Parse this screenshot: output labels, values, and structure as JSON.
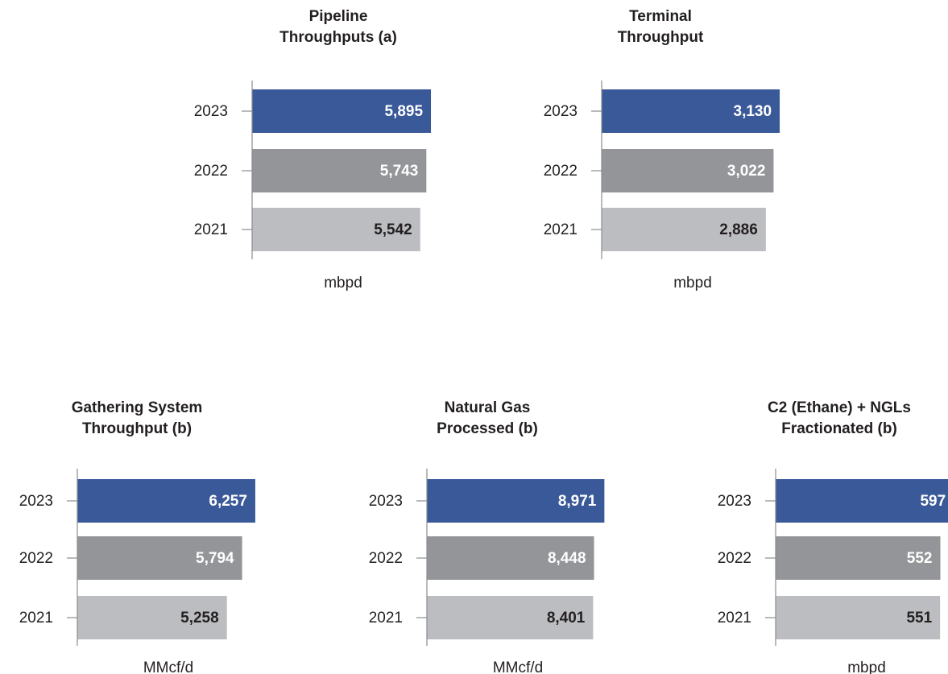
{
  "chart_data": [
    {
      "type": "bar",
      "title": [
        "Pipeline",
        "Throughputs (a)"
      ],
      "categories": [
        "2023",
        "2022",
        "2021"
      ],
      "values": [
        5895,
        5743,
        5542
      ],
      "value_labels": [
        "5,895",
        "5,743",
        "5,542"
      ],
      "colors": [
        "#3a5998",
        "#939598",
        "#bcbdc0"
      ],
      "value_label_colors": [
        "#ffffff",
        "#ffffff",
        "#231f20"
      ],
      "xlim": [
        0,
        6000
      ],
      "xlabel": "mbpd"
    },
    {
      "type": "bar",
      "title": [
        "Terminal",
        "Throughput"
      ],
      "categories": [
        "2023",
        "2022",
        "2021"
      ],
      "values": [
        3130,
        3022,
        2886
      ],
      "value_labels": [
        "3,130",
        "3,022",
        "2,886"
      ],
      "colors": [
        "#3a5998",
        "#939598",
        "#bcbdc0"
      ],
      "value_label_colors": [
        "#ffffff",
        "#ffffff",
        "#231f20"
      ],
      "xlim": [
        0,
        3200
      ],
      "xlabel": "mbpd"
    },
    {
      "type": "bar",
      "title": [
        "Gathering System",
        "Throughput (b)"
      ],
      "categories": [
        "2023",
        "2022",
        "2021"
      ],
      "values": [
        6257,
        5794,
        5258
      ],
      "value_labels": [
        "6,257",
        "5,794",
        "5,258"
      ],
      "colors": [
        "#3a5998",
        "#939598",
        "#bcbdc0"
      ],
      "value_label_colors": [
        "#ffffff",
        "#ffffff",
        "#231f20"
      ],
      "xlim": [
        0,
        6400
      ],
      "xlabel": "MMcf/d"
    },
    {
      "type": "bar",
      "title": [
        "Natural Gas",
        "Processed (b)"
      ],
      "categories": [
        "2023",
        "2022",
        "2021"
      ],
      "values": [
        8971,
        8448,
        8401
      ],
      "value_labels": [
        "8,971",
        "8,448",
        "8,401"
      ],
      "colors": [
        "#3a5998",
        "#939598",
        "#bcbdc0"
      ],
      "value_label_colors": [
        "#ffffff",
        "#ffffff",
        "#231f20"
      ],
      "xlim": [
        0,
        9200
      ],
      "xlabel": "MMcf/d"
    },
    {
      "type": "bar",
      "title": [
        "C2 (Ethane) + NGLs",
        "Fractionated (b)"
      ],
      "categories": [
        "2023",
        "2022",
        "2021"
      ],
      "values": [
        597,
        552,
        551
      ],
      "value_labels": [
        "597",
        "552",
        "551"
      ],
      "colors": [
        "#3a5998",
        "#939598",
        "#bcbdc0"
      ],
      "value_label_colors": [
        "#ffffff",
        "#ffffff",
        "#231f20"
      ],
      "xlim": [
        0,
        610
      ],
      "xlabel": "mbpd"
    }
  ]
}
